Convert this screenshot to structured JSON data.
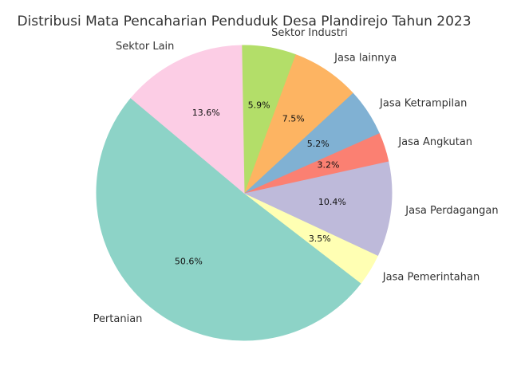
{
  "chart_data": {
    "type": "pie",
    "title": "Distribusi Mata Pencaharian Penduduk Desa Plandirejo Tahun 2023",
    "categories": [
      "Pertanian",
      "Jasa Pemerintahan",
      "Jasa Perdagangan",
      "Jasa Angkutan",
      "Jasa Ketrampilan",
      "Jasa lainnya",
      "Sektor Industri",
      "Sektor Lain"
    ],
    "values": [
      50.6,
      3.5,
      10.4,
      3.2,
      5.2,
      7.5,
      5.9,
      13.6
    ],
    "value_labels": [
      "50.6%",
      "3.5%",
      "10.4%",
      "3.2%",
      "5.2%",
      "7.5%",
      "5.9%",
      "13.6%"
    ],
    "colors": [
      "#8dd3c7",
      "#ffffb3",
      "#bebada",
      "#fb8072",
      "#80b1d3",
      "#fdb462",
      "#b3de69",
      "#fccde5"
    ],
    "start_angle": 140
  }
}
